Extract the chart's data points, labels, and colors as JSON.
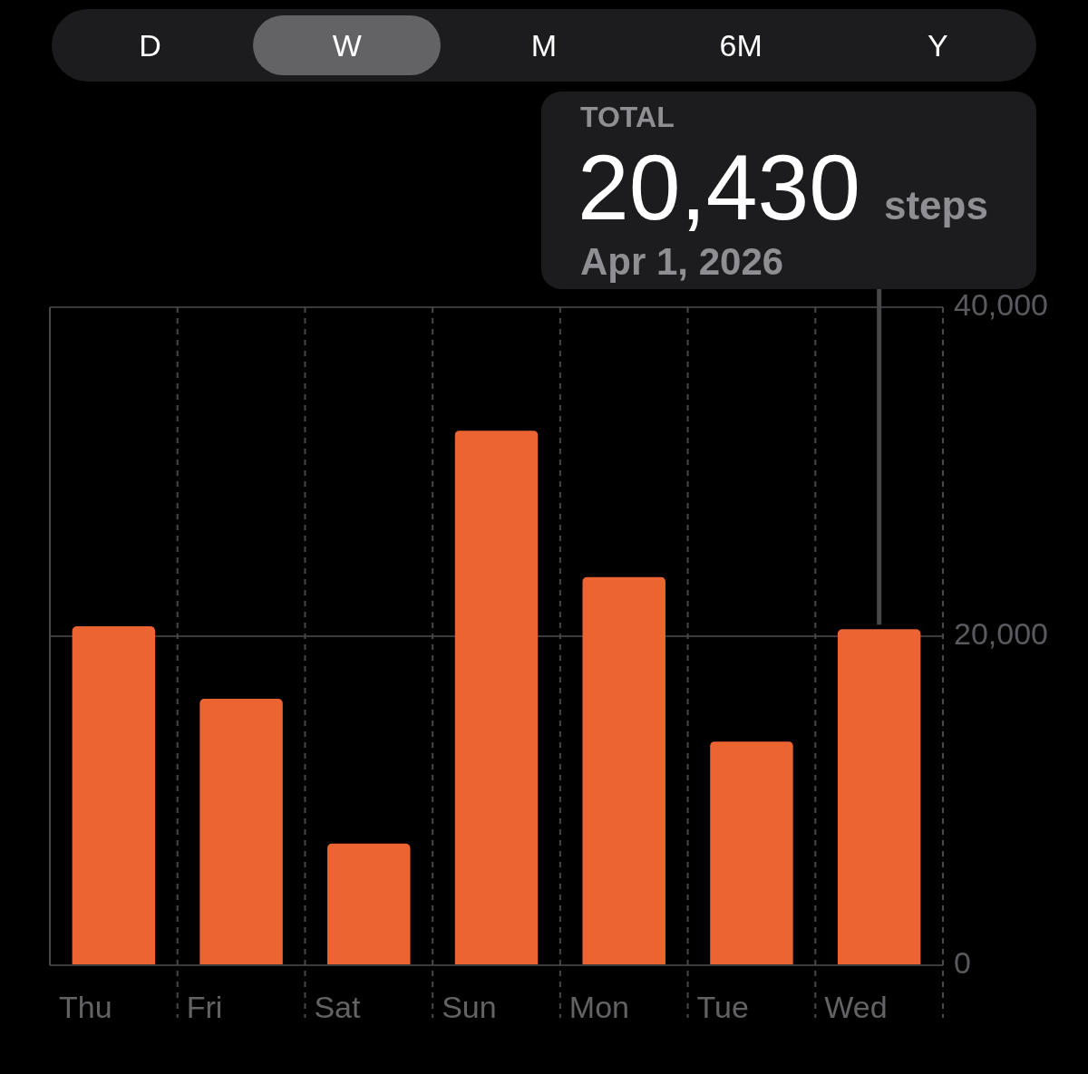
{
  "chart_data": {
    "type": "bar",
    "categories": [
      "Thu",
      "Fri",
      "Sat",
      "Sun",
      "Mon",
      "Tue",
      "Wed"
    ],
    "values": [
      20600,
      16200,
      7400,
      32500,
      23600,
      13600,
      20430
    ],
    "color": "#ec6432",
    "ylim": [
      0,
      40000
    ],
    "yticks": [
      0,
      {
        "value": 20000,
        "label": "20,000"
      },
      {
        "value": 40000,
        "label": "40,000"
      }
    ],
    "grid": true,
    "annotations": [
      "D",
      "W",
      "M",
      "6M",
      "Y",
      "TOTAL",
      "20,430",
      "steps",
      "Apr 1, 2026"
    ]
  }
}
